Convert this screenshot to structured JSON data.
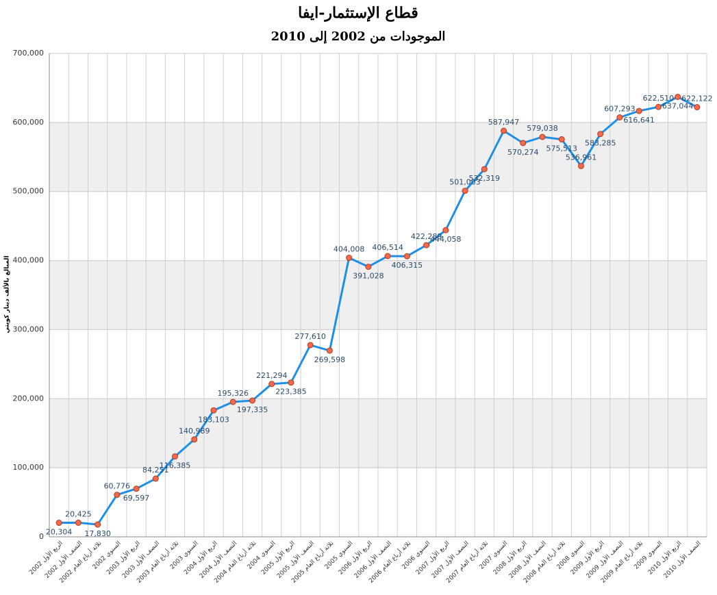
{
  "chart_data": {
    "type": "line",
    "title": "قطاع الإستثمار-ايفا",
    "subtitle": "الموجودات من 2002 إلى 2010",
    "y_label": "المبالغ بالألف دينار كويتي",
    "categories": [
      "2002 الربع الأول",
      "2002 النصف الأول",
      "2002 ثلاثة أرباع العام",
      "2002 السنوي",
      "2003 الربع الأول",
      "2003 النصف الأول",
      "2003 ثلاثة أرباع العام",
      "2003 السنوي",
      "2004 الربع الأول",
      "2004 النصف الأول",
      "2004 ثلاثة أرباع العام",
      "2004 السنوي",
      "2005 الربع الأول",
      "2005 النصف الأول",
      "2005 ثلاثة أرباع العام",
      "2005 السنوي",
      "2006 الربع الأول",
      "2006 النصف الأول",
      "2006 ثلاثة أرباع العام",
      "2006 السنوي",
      "2007 الربع الأول",
      "2007 النصف الأول",
      "2007 ثلاثة أرباع العام",
      "2007 السنوي",
      "2008 الربع الأول",
      "2008 النصف الأول",
      "2008 ثلاثة أرباع العام",
      "2008 السنوي",
      "2009 الربع الأول",
      "2009 النصف الأول",
      "2009 ثلاثة أرباع العام",
      "2009 السنوي",
      "2010 الربع الأول",
      "2010 النصف الأول"
    ],
    "values": [
      20304,
      20425,
      17830,
      60776,
      69597,
      84251,
      116385,
      140989,
      183103,
      195326,
      197335,
      221294,
      223385,
      277610,
      269598,
      404008,
      391028,
      406514,
      406315,
      422289,
      444058,
      501003,
      532319,
      587947,
      570274,
      579038,
      575513,
      536961,
      583285,
      607293,
      616641,
      622510,
      637044,
      622122
    ],
    "value_labels": [
      "20,304",
      "20,425",
      "17,830",
      "60,776",
      "69,597",
      "84,251",
      "116,385",
      "140,989",
      "183,103",
      "195,326",
      "197,335",
      "221,294",
      "223,385",
      "277,610",
      "269,598",
      "404,008",
      "391,028",
      "406,514",
      "406,315",
      "422,289",
      "444,058",
      "501,003",
      "532,319",
      "587,947",
      "570,274",
      "579,038",
      "575,513",
      "536,961",
      "583,285",
      "607,293",
      "616,641",
      "622,510",
      "637,044",
      "622,122"
    ],
    "color": "#1e8fe6",
    "marker_color": "#f26a4b",
    "ylim": [
      0,
      700000
    ],
    "yticks": [
      {
        "value": 0,
        "label": "0"
      },
      {
        "value": 100000,
        "label": "100,000"
      },
      {
        "value": 200000,
        "label": "200,000"
      },
      {
        "value": 300000,
        "label": "300,000"
      },
      {
        "value": 400000,
        "label": "400,000"
      },
      {
        "value": 500000,
        "label": "500,000"
      },
      {
        "value": 600000,
        "label": "600,000"
      },
      {
        "value": 700000,
        "label": "700,000"
      }
    ],
    "grid": true
  }
}
